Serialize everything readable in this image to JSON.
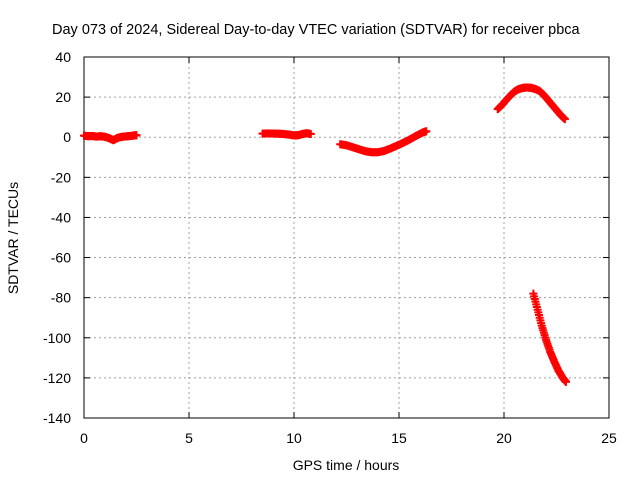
{
  "chart_data": {
    "type": "scatter",
    "title": "Day 073 of 2024, Sidereal Day-to-day VTEC variation (SDTVAR) for receiver pbca",
    "xlabel": "GPS time / hours",
    "ylabel": "SDTVAR / TECUs",
    "xlim": [
      0,
      25
    ],
    "ylim": [
      -140,
      40
    ],
    "xticks": [
      "0",
      "5",
      "10",
      "15",
      "20",
      "25"
    ],
    "yticks": [
      "40",
      "20",
      "0",
      "-20",
      "-40",
      "-60",
      "-80",
      "-100",
      "-120",
      "-140"
    ],
    "grid": true,
    "marker": "plus",
    "color": "#ff0000",
    "series": [
      {
        "points": [
          [
            0.0,
            0.8
          ],
          [
            0.2,
            0.5
          ],
          [
            0.4,
            0.6
          ],
          [
            0.6,
            0.3
          ],
          [
            0.8,
            0.5
          ],
          [
            1.0,
            0.2
          ],
          [
            1.2,
            -0.5
          ],
          [
            1.4,
            -1.5
          ],
          [
            1.6,
            -0.3
          ],
          [
            1.8,
            0.2
          ],
          [
            2.0,
            0.4
          ],
          [
            2.2,
            0.6
          ],
          [
            2.4,
            0.9
          ],
          [
            2.5,
            1.0
          ]
        ]
      },
      {
        "points": [
          [
            8.5,
            1.8
          ],
          [
            8.8,
            1.9
          ],
          [
            9.1,
            1.8
          ],
          [
            9.4,
            1.7
          ],
          [
            9.7,
            1.4
          ],
          [
            10.0,
            0.9
          ],
          [
            10.2,
            1.0
          ],
          [
            10.4,
            1.6
          ],
          [
            10.6,
            2.0
          ],
          [
            10.8,
            1.6
          ]
        ]
      },
      {
        "points": [
          [
            12.2,
            -3.5
          ],
          [
            12.5,
            -4.0
          ],
          [
            12.8,
            -5.0
          ],
          [
            13.1,
            -6.0
          ],
          [
            13.4,
            -7.0
          ],
          [
            13.7,
            -7.5
          ],
          [
            14.0,
            -7.5
          ],
          [
            14.3,
            -6.8
          ],
          [
            14.6,
            -5.6
          ],
          [
            14.9,
            -4.2
          ],
          [
            15.2,
            -2.8
          ],
          [
            15.5,
            -1.2
          ],
          [
            15.8,
            0.6
          ],
          [
            16.1,
            2.2
          ],
          [
            16.3,
            3.0
          ]
        ]
      },
      {
        "points": [
          [
            19.7,
            14.0
          ],
          [
            19.9,
            16.0
          ],
          [
            20.1,
            18.5
          ],
          [
            20.3,
            20.8
          ],
          [
            20.5,
            22.8
          ],
          [
            20.7,
            24.0
          ],
          [
            20.9,
            24.6
          ],
          [
            21.1,
            24.8
          ],
          [
            21.3,
            24.6
          ],
          [
            21.5,
            24.0
          ],
          [
            21.7,
            23.0
          ],
          [
            21.9,
            21.0
          ],
          [
            22.1,
            18.5
          ],
          [
            22.3,
            16.0
          ],
          [
            22.5,
            13.5
          ],
          [
            22.7,
            11.0
          ],
          [
            22.9,
            9.0
          ]
        ]
      },
      {
        "points": [
          [
            21.4,
            -78
          ],
          [
            21.6,
            -86
          ],
          [
            21.8,
            -94
          ],
          [
            22.0,
            -101
          ],
          [
            22.2,
            -107
          ],
          [
            22.4,
            -112
          ],
          [
            22.6,
            -116.5
          ],
          [
            22.8,
            -120
          ],
          [
            22.95,
            -122
          ]
        ]
      }
    ]
  }
}
